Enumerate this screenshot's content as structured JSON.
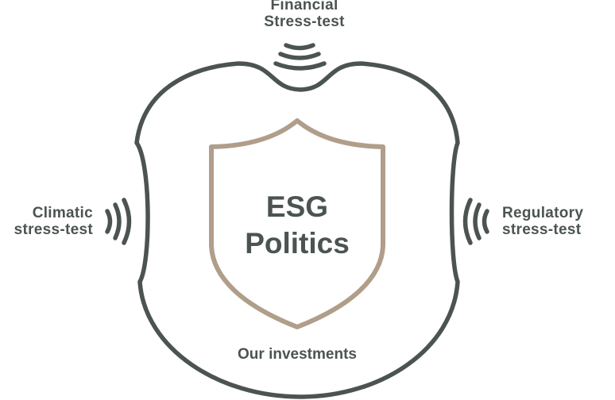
{
  "colors": {
    "outline": "#4b5450",
    "shield": "#b09e8b",
    "text": "#4b5450"
  },
  "labels": {
    "top": {
      "line1": "Financial",
      "line2": "Stress-test"
    },
    "left": {
      "line1": "Climatic",
      "line2": "stress-test"
    },
    "right": {
      "line1": "Regulatory",
      "line2": "stress-test"
    }
  },
  "center": {
    "line1": "ESG",
    "line2": "Politics"
  },
  "footer": "Our investments",
  "icons": {
    "top": "signal-waves-down-icon",
    "left": "signal-waves-right-icon",
    "right": "signal-waves-left-icon",
    "shield": "shield-icon"
  }
}
